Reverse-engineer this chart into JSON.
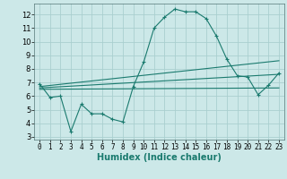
{
  "xlabel": "Humidex (Indice chaleur)",
  "background_color": "#cce8e8",
  "grid_color": "#aacfcf",
  "line_color": "#1a7a6e",
  "xlim": [
    -0.5,
    23.5
  ],
  "ylim": [
    2.8,
    12.8
  ],
  "yticks": [
    3,
    4,
    5,
    6,
    7,
    8,
    9,
    10,
    11,
    12
  ],
  "xticks": [
    0,
    1,
    2,
    3,
    4,
    5,
    6,
    7,
    8,
    9,
    10,
    11,
    12,
    13,
    14,
    15,
    16,
    17,
    18,
    19,
    20,
    21,
    22,
    23
  ],
  "series1_x": [
    0,
    1,
    2,
    3,
    4,
    5,
    6,
    7,
    8,
    9,
    10,
    11,
    12,
    13,
    14,
    15,
    16,
    17,
    18,
    19,
    20,
    21,
    22,
    23
  ],
  "series1_y": [
    6.9,
    5.9,
    6.0,
    3.4,
    5.4,
    4.7,
    4.7,
    4.3,
    4.1,
    6.7,
    8.5,
    11.0,
    11.8,
    12.4,
    12.2,
    12.2,
    11.7,
    10.4,
    8.7,
    7.5,
    7.4,
    6.1,
    6.8,
    7.7
  ],
  "series2_x": [
    0,
    23
  ],
  "series2_y": [
    6.7,
    8.6
  ],
  "series3_x": [
    0,
    23
  ],
  "series3_y": [
    6.6,
    7.6
  ],
  "series4_x": [
    0,
    23
  ],
  "series4_y": [
    6.5,
    6.6
  ]
}
